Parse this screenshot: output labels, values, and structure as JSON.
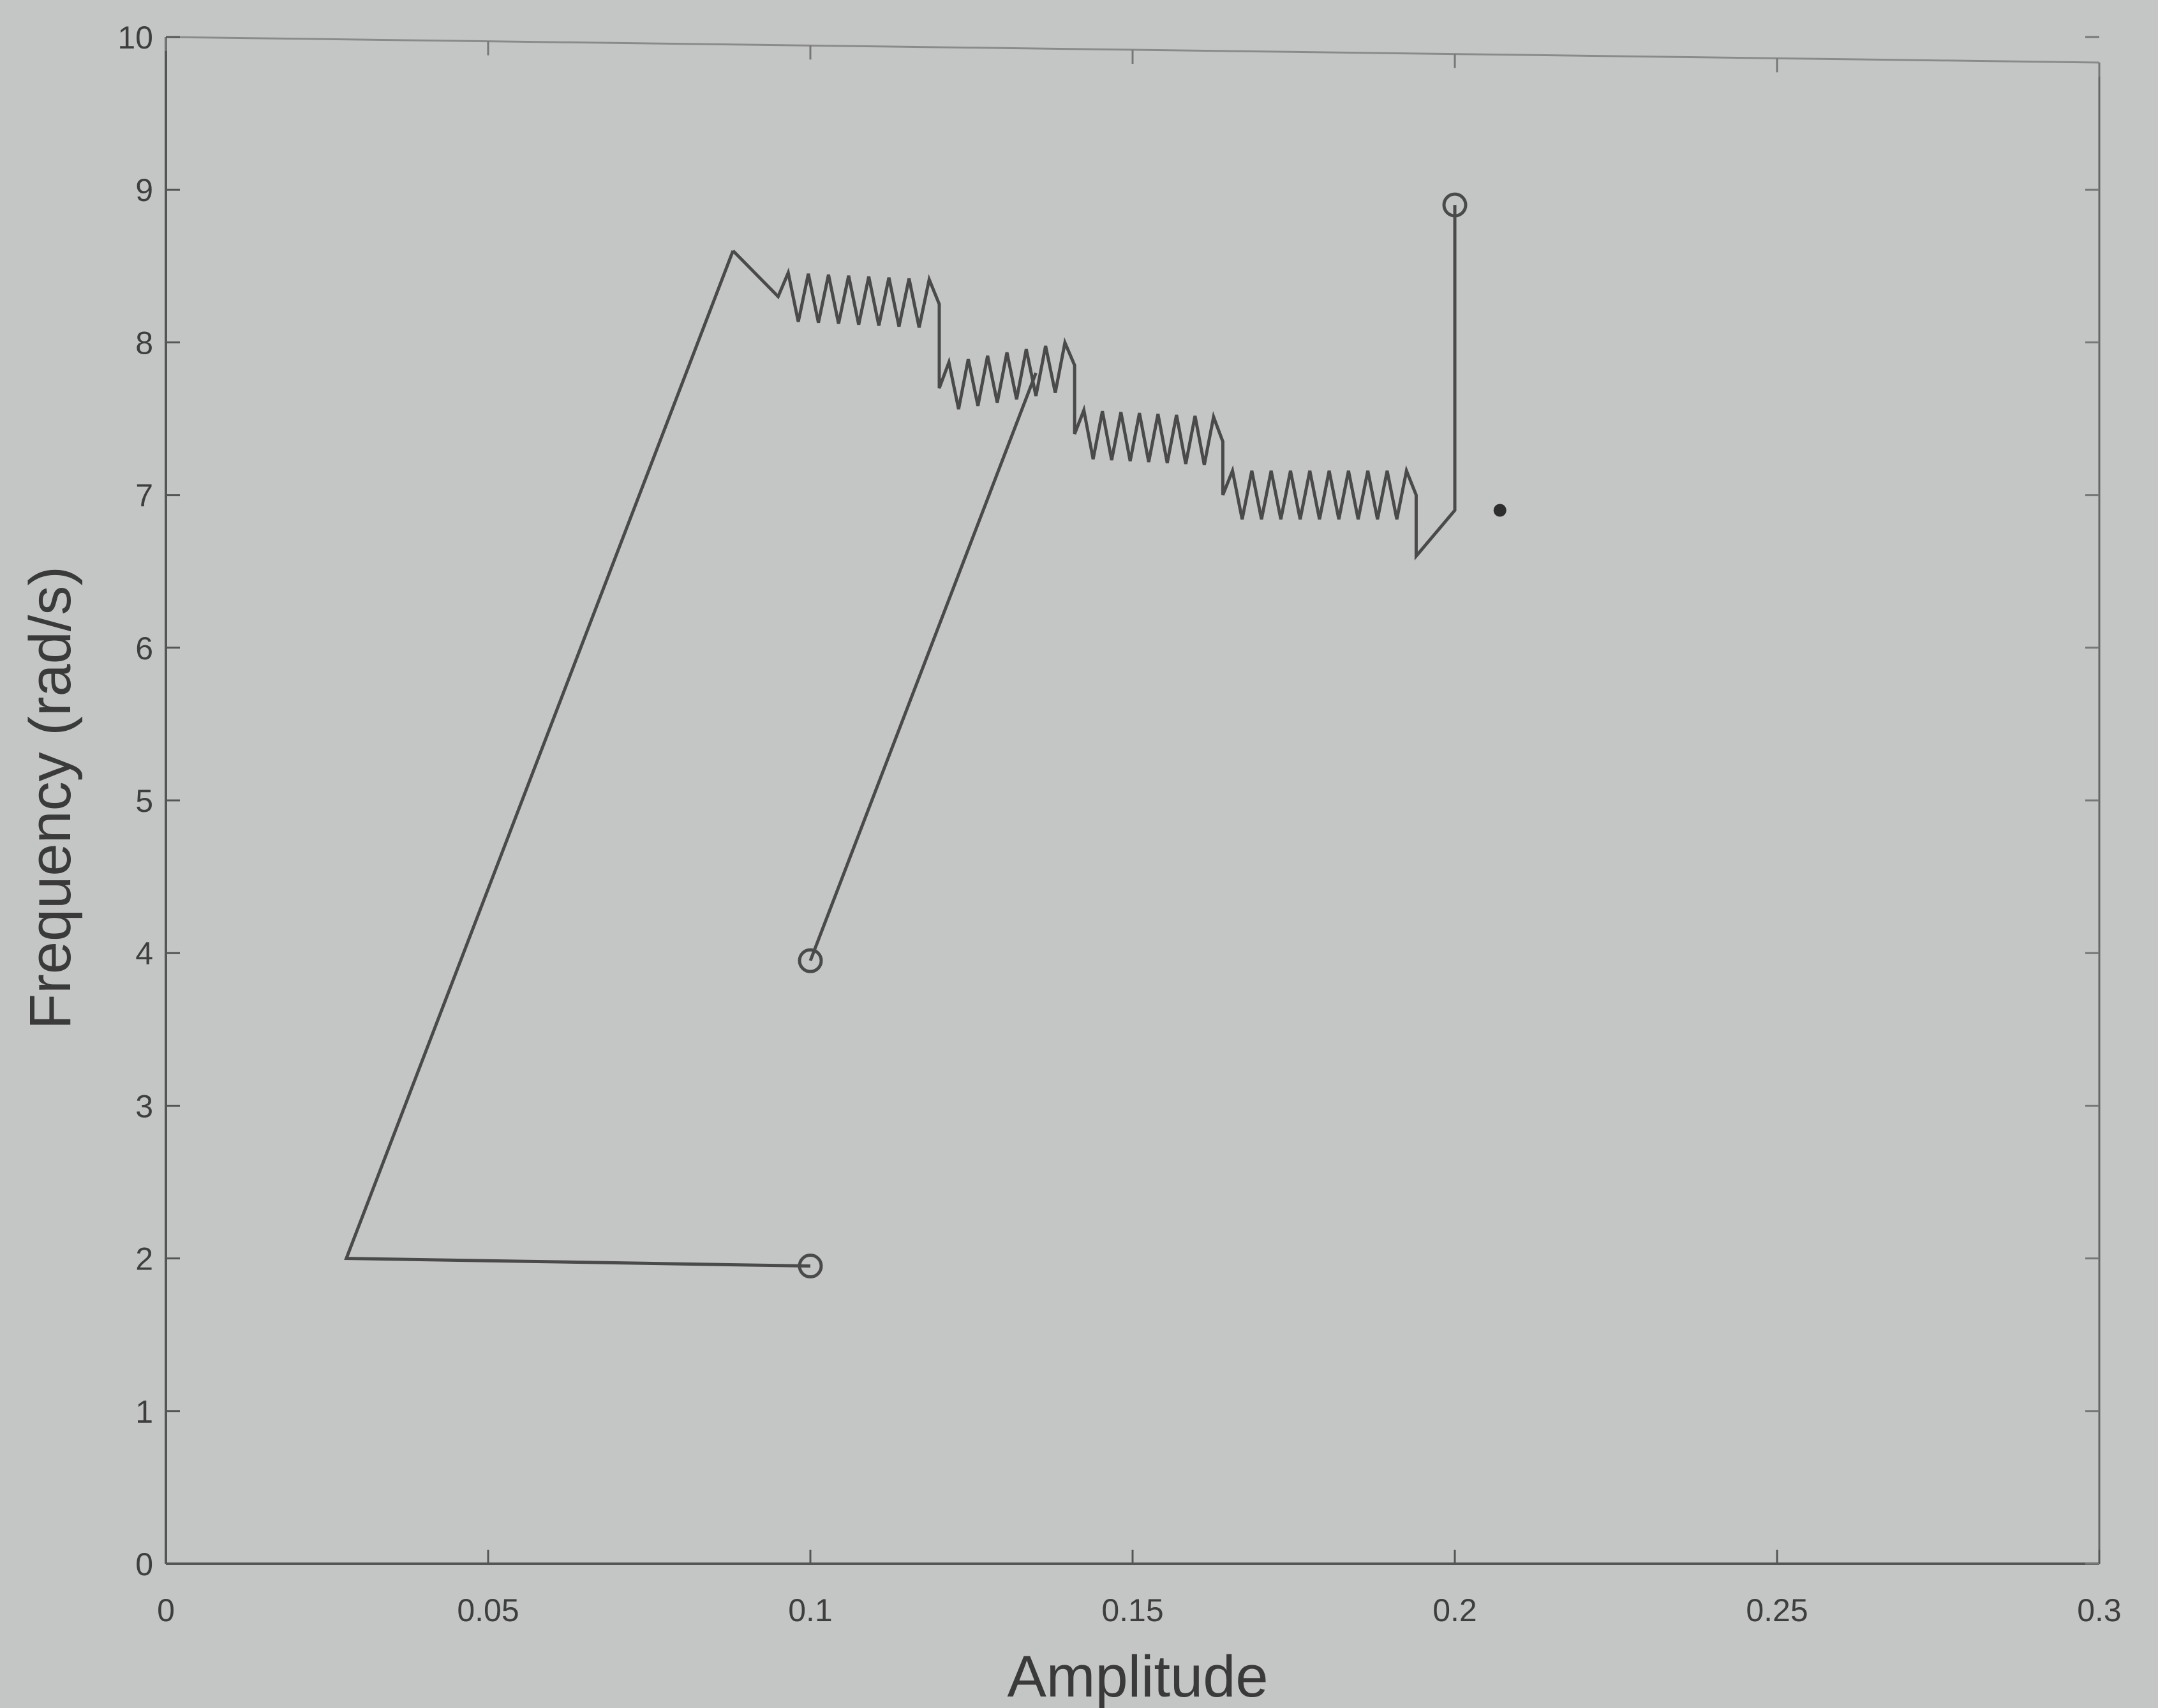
{
  "chart_data": {
    "type": "line",
    "title": "",
    "xlabel": "Amplitude",
    "ylabel": "Frequency (rad/s)",
    "xlim": [
      0,
      0.3
    ],
    "ylim": [
      0,
      10
    ],
    "xticks": [
      0,
      0.05,
      0.1,
      0.15,
      0.2,
      0.25,
      0.3
    ],
    "xtick_labels": [
      "0",
      "0.05",
      "0.1",
      "0.15",
      "0.2",
      "0.25",
      "0.3"
    ],
    "yticks": [
      0,
      1,
      2,
      3,
      4,
      5,
      6,
      7,
      8,
      9,
      10
    ],
    "ytick_labels": [
      "0",
      "1",
      "2",
      "3",
      "4",
      "5",
      "6",
      "7",
      "8",
      "9",
      "10"
    ],
    "grid": false,
    "series": [
      {
        "points": [
          {
            "x": 0.1,
            "y": 1.95
          },
          {
            "x": 0.028,
            "y": 2.0
          },
          {
            "x": 0.088,
            "y": 8.6
          }
        ],
        "endpoint_markers": [
          {
            "x": 0.1,
            "y": 1.95
          }
        ]
      },
      {
        "points": [
          {
            "x": 0.1,
            "y": 3.95
          },
          {
            "x": 0.135,
            "y": 7.8
          }
        ],
        "endpoint_markers": [
          {
            "x": 0.1,
            "y": 3.95
          }
        ]
      },
      {
        "style": "zigzag",
        "points": [
          {
            "x": 0.088,
            "y": 8.6
          },
          {
            "x": 0.095,
            "y": 8.3
          },
          {
            "x": 0.12,
            "y": 8.25
          },
          {
            "x": 0.12,
            "y": 7.7
          },
          {
            "x": 0.141,
            "y": 7.85
          },
          {
            "x": 0.141,
            "y": 7.4
          },
          {
            "x": 0.164,
            "y": 7.35
          },
          {
            "x": 0.164,
            "y": 7.0
          },
          {
            "x": 0.194,
            "y": 7.0
          },
          {
            "x": 0.194,
            "y": 6.6
          },
          {
            "x": 0.2,
            "y": 6.9
          },
          {
            "x": 0.2,
            "y": 8.9
          }
        ],
        "endpoint_markers": [
          {
            "x": 0.2,
            "y": 8.9
          }
        ]
      }
    ],
    "point_markers": [
      {
        "x": 0.207,
        "y": 6.9
      }
    ],
    "line_color": "#4a4a4a",
    "background_color": "#c4c6c5"
  }
}
